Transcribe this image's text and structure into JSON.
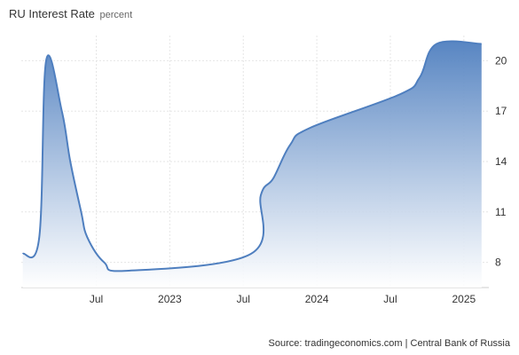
{
  "title": "RU Interest Rate",
  "unit": "percent",
  "source": "Source: tradingeconomics.com | Central Bank of Russia",
  "colors": {
    "line": "#4f7fbf",
    "fill_top": "#4f7fbf",
    "fill_bottom": "#ffffff",
    "grid": "#e6e6e6"
  },
  "chart_data": {
    "type": "area",
    "title": "RU Interest Rate",
    "subtitle": "percent",
    "xlabel": "",
    "ylabel": "",
    "ylim": [
      6.5,
      21.5
    ],
    "y_ticks": [
      8,
      11,
      14,
      17,
      20
    ],
    "y_axis_side": "right",
    "x_ticks": [
      {
        "t": 2022.5,
        "label": "Jul"
      },
      {
        "t": 2023.0,
        "label": "2023"
      },
      {
        "t": 2023.5,
        "label": "Jul"
      },
      {
        "t": 2024.0,
        "label": "2024"
      },
      {
        "t": 2024.5,
        "label": "Jul"
      },
      {
        "t": 2025.0,
        "label": "2025"
      }
    ],
    "xlim": [
      2021.99,
      2025.17
    ],
    "grid": true,
    "series": [
      {
        "values": [
          {
            "x": "2022-01-01",
            "y": 8.5
          },
          {
            "x": "2022-02-11",
            "y": 9.5
          },
          {
            "x": "2022-02-28",
            "y": 20.0
          },
          {
            "x": "2022-04-08",
            "y": 17.0
          },
          {
            "x": "2022-04-29",
            "y": 14.0
          },
          {
            "x": "2022-05-26",
            "y": 11.0
          },
          {
            "x": "2022-06-10",
            "y": 9.5
          },
          {
            "x": "2022-07-22",
            "y": 8.0
          },
          {
            "x": "2022-09-16",
            "y": 7.5
          },
          {
            "x": "2023-07-21",
            "y": 8.5
          },
          {
            "x": "2023-08-15",
            "y": 12.0
          },
          {
            "x": "2023-09-15",
            "y": 13.0
          },
          {
            "x": "2023-10-27",
            "y": 15.0
          },
          {
            "x": "2023-12-15",
            "y": 16.0
          },
          {
            "x": "2024-07-26",
            "y": 18.0
          },
          {
            "x": "2024-09-13",
            "y": 19.0
          },
          {
            "x": "2024-10-25",
            "y": 21.0
          },
          {
            "x": "2025-02-14",
            "y": 21.0
          }
        ]
      }
    ]
  }
}
